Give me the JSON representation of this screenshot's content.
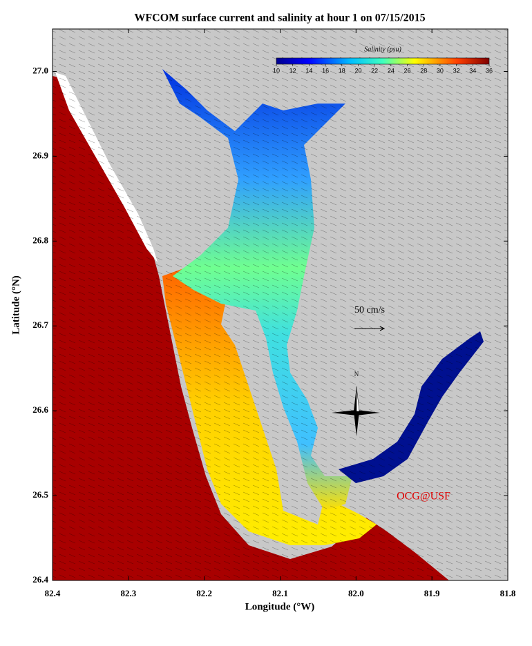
{
  "map": {
    "title": "WFCOM surface current and salinity at hour 1 on 07/15/2015",
    "xlabel": "Longitude (°W)",
    "ylabel": "Latitude (°N)",
    "xlim": [
      82.4,
      81.8
    ],
    "ylim": [
      26.4,
      27.05
    ],
    "xticks": [
      82.4,
      82.3,
      82.2,
      82.1,
      {
        "value": 82,
        "label": "82.0"
      },
      81.9,
      81.8
    ],
    "yticks": [
      26.4,
      26.5,
      26.6,
      26.7,
      26.8,
      26.9,
      {
        "value": 27,
        "label": "27.0"
      }
    ],
    "colorbar": {
      "label": "Salinity (psu)",
      "lim": [
        10,
        36
      ],
      "ticks": [
        10,
        12,
        14,
        16,
        18,
        20,
        22,
        24,
        26,
        28,
        30,
        32,
        34,
        36
      ]
    },
    "scale_arrow": "50 cm/s",
    "compass": "N",
    "credit": "OCG@USF"
  }
}
